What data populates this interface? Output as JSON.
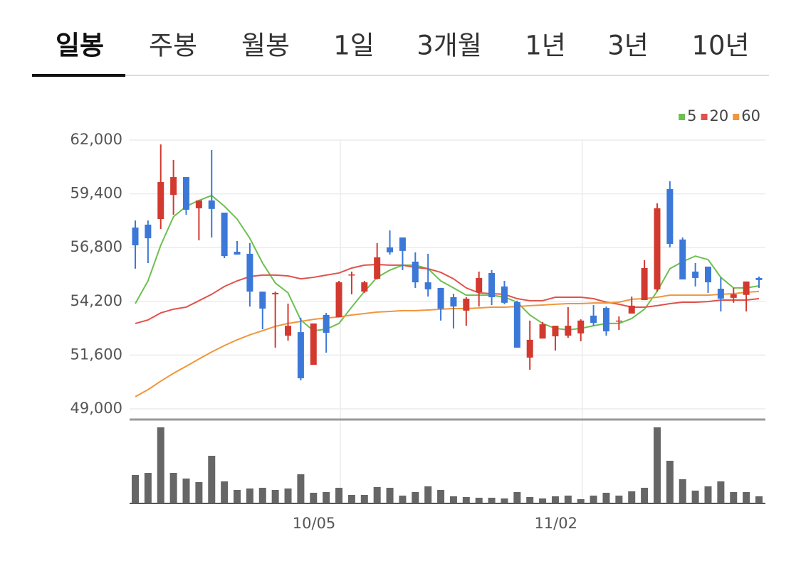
{
  "tabs": [
    "일봉",
    "주봉",
    "월봉",
    "1일",
    "3개월",
    "1년",
    "3년",
    "10년"
  ],
  "chart_data": {
    "type": "candlestick",
    "categories": [
      null,
      null,
      null,
      null,
      null,
      null,
      null,
      null,
      null,
      null,
      null,
      null,
      null,
      null,
      null,
      null,
      "10/05",
      null,
      null,
      null,
      null,
      null,
      null,
      null,
      null,
      null,
      null,
      null,
      null,
      null,
      null,
      null,
      null,
      null,
      null,
      "11/02",
      null,
      null,
      null,
      null,
      null,
      null,
      null,
      null,
      null,
      null,
      null,
      null,
      null,
      null
    ],
    "open": [
      57770,
      57910,
      58180,
      59350,
      60210,
      58700,
      59080,
      58490,
      56600,
      56500,
      54670,
      54540,
      52540,
      52710,
      51130,
      53540,
      53440,
      55470,
      54670,
      55290,
      56810,
      57290,
      56120,
      55120,
      54850,
      54400,
      53750,
      54640,
      55570,
      54920,
      54160,
      51480,
      52400,
      52510,
      52540,
      52650,
      53510,
      53880,
      53230,
      53610,
      54260,
      54780,
      59630,
      57190,
      55640,
      55880,
      54810,
      54370,
      54510,
      55330
    ],
    "high": [
      58110,
      58110,
      61790,
      61040,
      60210,
      59080,
      61520,
      58490,
      57120,
      57020,
      54670,
      54670,
      54090,
      53400,
      53130,
      53640,
      55190,
      55640,
      55190,
      57020,
      57630,
      57290,
      56570,
      56500,
      54850,
      54570,
      54400,
      55640,
      55710,
      55190,
      54230,
      53270,
      53200,
      53020,
      53920,
      53330,
      54020,
      53950,
      53470,
      54430,
      56190,
      58940,
      60010,
      57290,
      56050,
      55880,
      55360,
      54850,
      55160,
      55400
    ],
    "low": [
      55780,
      56050,
      57700,
      58390,
      58390,
      57150,
      57290,
      56290,
      56460,
      53950,
      52850,
      51960,
      52300,
      50380,
      51130,
      51720,
      53440,
      54540,
      54610,
      55260,
      56460,
      55710,
      54850,
      54430,
      53270,
      52890,
      53020,
      53950,
      54020,
      54060,
      51960,
      50890,
      52400,
      51820,
      52440,
      52270,
      53020,
      52540,
      52820,
      53610,
      54260,
      54670,
      56810,
      55260,
      54920,
      54610,
      53710,
      54130,
      53710,
      54850
    ],
    "close": [
      56910,
      57250,
      59970,
      60210,
      58630,
      59080,
      58670,
      56390,
      56460,
      54670,
      53850,
      54610,
      53020,
      50480,
      53130,
      52680,
      55120,
      55500,
      55120,
      56330,
      56570,
      56640,
      55120,
      54780,
      53850,
      53950,
      54330,
      55330,
      54400,
      54130,
      51960,
      52340,
      53090,
      53020,
      53020,
      53270,
      53160,
      52750,
      53270,
      53990,
      55810,
      58700,
      56980,
      55260,
      55330,
      55120,
      54330,
      54540,
      55160,
      55230
    ],
    "up_color": "#d2392f",
    "down_color": "#3b78d8",
    "moving_averages": [
      {
        "name": "5",
        "color": "#6cc04f",
        "values": [
          54090,
          55190,
          56910,
          58290,
          58800,
          59080,
          59320,
          58800,
          58180,
          57250,
          56050,
          55090,
          54610,
          53300,
          52780,
          52850,
          53130,
          53920,
          54680,
          55360,
          55710,
          55950,
          55950,
          55780,
          55190,
          54850,
          54500,
          54500,
          54500,
          54400,
          54160,
          53540,
          53130,
          52890,
          52820,
          52890,
          53020,
          53130,
          53130,
          53370,
          53820,
          54680,
          55780,
          56120,
          56390,
          56220,
          55360,
          54850,
          54850,
          54950
        ]
      },
      {
        "name": "20",
        "color": "#e0524c",
        "values": [
          53130,
          53300,
          53640,
          53820,
          53920,
          54230,
          54540,
          54920,
          55190,
          55400,
          55470,
          55470,
          55430,
          55290,
          55360,
          55470,
          55570,
          55810,
          55950,
          55980,
          55950,
          55950,
          55840,
          55780,
          55600,
          55290,
          54850,
          54610,
          54570,
          54540,
          54330,
          54230,
          54230,
          54400,
          54400,
          54400,
          54330,
          54160,
          54060,
          53920,
          53920,
          53990,
          54090,
          54160,
          54160,
          54190,
          54260,
          54260,
          54260,
          54330
        ]
      },
      {
        "name": "60",
        "color": "#f0963c",
        "values": [
          49590,
          49930,
          50340,
          50720,
          51060,
          51410,
          51750,
          52060,
          52340,
          52580,
          52780,
          52990,
          53130,
          53230,
          53330,
          53400,
          53440,
          53540,
          53610,
          53680,
          53710,
          53750,
          53750,
          53780,
          53820,
          53850,
          53850,
          53880,
          53920,
          53920,
          53950,
          53990,
          54020,
          54060,
          54090,
          54090,
          54120,
          54120,
          54160,
          54300,
          54330,
          54400,
          54500,
          54500,
          54500,
          54500,
          54540,
          54570,
          54640,
          54680
        ]
      }
    ],
    "volume": [
      40,
      43,
      107,
      43,
      35,
      30,
      67,
      31,
      19,
      21,
      22,
      19,
      21,
      41,
      15,
      16,
      22,
      12,
      12,
      23,
      22,
      11,
      16,
      24,
      19,
      10,
      9,
      8,
      8,
      7,
      16,
      9,
      7,
      10,
      11,
      6,
      11,
      15,
      11,
      17,
      22,
      107,
      60,
      34,
      18,
      24,
      31,
      16,
      16,
      10
    ],
    "volume_color": "#666666",
    "ylim": [
      49000,
      62000
    ],
    "yticks": [
      {
        "value": 49000,
        "label": "49,000"
      },
      {
        "value": 51600,
        "label": "51,600"
      },
      {
        "value": 54200,
        "label": "54,200"
      },
      {
        "value": 56800,
        "label": "56,800"
      },
      {
        "value": 59400,
        "label": "59,400"
      },
      {
        "value": 62000,
        "label": "62,000"
      }
    ],
    "grid": true
  }
}
